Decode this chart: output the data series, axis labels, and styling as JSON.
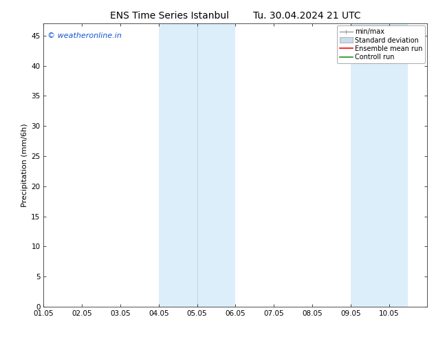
{
  "title_left": "ENS Time Series Istanbul",
  "title_right": "Tu. 30.04.2024 21 UTC",
  "ylabel": "Precipitation (mm/6h)",
  "xlim": [
    0,
    10
  ],
  "ylim": [
    0,
    47
  ],
  "yticks": [
    0,
    5,
    10,
    15,
    20,
    25,
    30,
    35,
    40,
    45
  ],
  "xtick_positions": [
    0,
    1,
    2,
    3,
    4,
    5,
    6,
    7,
    8,
    9
  ],
  "xtick_labels": [
    "01.05",
    "02.05",
    "03.05",
    "04.05",
    "05.05",
    "06.05",
    "07.05",
    "08.05",
    "09.05",
    "10.05"
  ],
  "background_color": "#ffffff",
  "plot_bg_color": "#ffffff",
  "shaded_bands": [
    {
      "x_start": 3.0,
      "x_end": 5.0,
      "color": "#dceef9"
    },
    {
      "x_start": 8.0,
      "x_end": 9.5,
      "color": "#dceef9"
    }
  ],
  "band_inner_lines": [
    {
      "x": 4.0,
      "color": "#b8d4e8",
      "lw": 0.7
    }
  ],
  "watermark_text": "© weatheronline.in",
  "watermark_color": "#1155cc",
  "watermark_fontsize": 8,
  "legend_items": [
    {
      "label": "min/max",
      "color": "#999999",
      "type": "hline"
    },
    {
      "label": "Standard deviation",
      "color": "#c8dcea",
      "type": "rect"
    },
    {
      "label": "Ensemble mean run",
      "color": "#ff0000",
      "type": "line"
    },
    {
      "label": "Controll run",
      "color": "#228b22",
      "type": "line"
    }
  ],
  "title_fontsize": 10,
  "axis_label_fontsize": 8,
  "tick_fontsize": 7.5,
  "legend_fontsize": 7
}
